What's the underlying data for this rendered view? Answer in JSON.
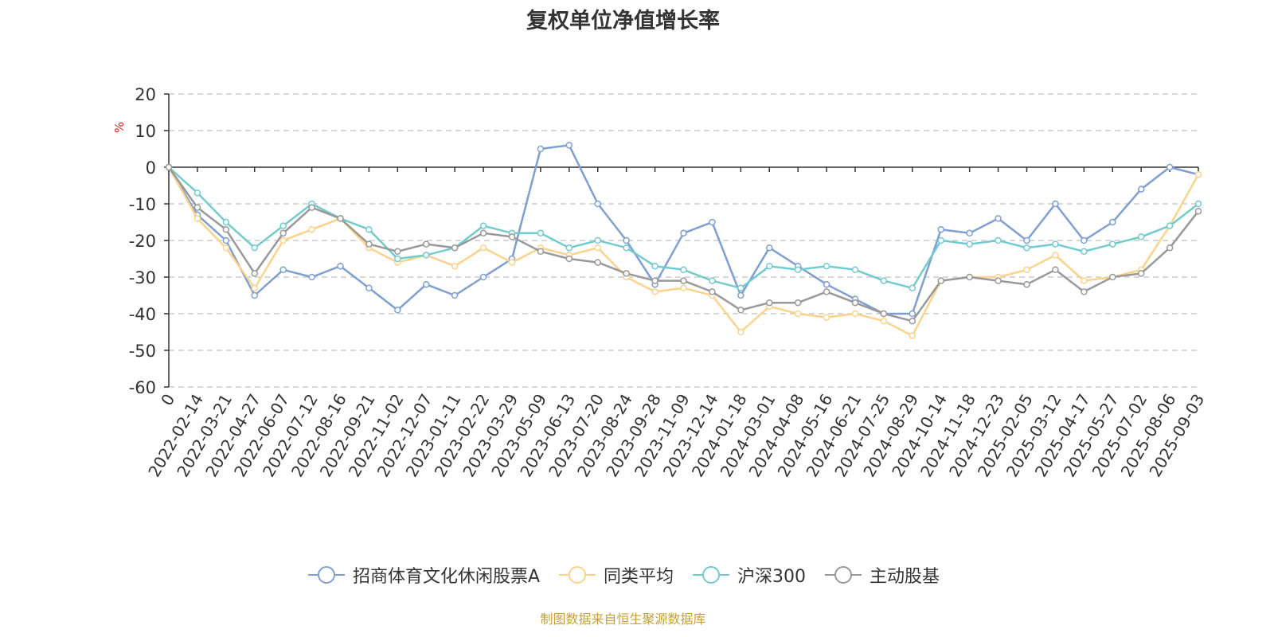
{
  "chart_data": {
    "type": "line",
    "title": "复权单位净值增长率",
    "ylabel": "%",
    "ylim": [
      -60,
      20
    ],
    "yticks": [
      20,
      10,
      0,
      -10,
      -20,
      -30,
      -40,
      -50,
      -60
    ],
    "grid": true,
    "legend_position": "bottom",
    "x": [
      "0",
      "2022-02-14",
      "2022-03-21",
      "2022-04-27",
      "2022-06-07",
      "2022-07-12",
      "2022-08-16",
      "2022-09-21",
      "2022-11-02",
      "2022-12-07",
      "2023-01-11",
      "2023-02-22",
      "2023-03-29",
      "2023-05-09",
      "2023-06-13",
      "2023-07-20",
      "2023-08-24",
      "2023-09-28",
      "2023-11-09",
      "2023-12-14",
      "2024-01-18",
      "2024-03-01",
      "2024-04-08",
      "2024-05-16",
      "2024-06-21",
      "2024-07-25",
      "2024-08-29",
      "2024-10-14",
      "2024-11-18",
      "2024-12-23",
      "2025-02-05",
      "2025-03-12",
      "2025-04-17",
      "2025-05-27",
      "2025-07-02",
      "2025-08-06",
      "2025-09-03"
    ],
    "series": [
      {
        "name": "招商体育文化休闲股票A",
        "color": "#7f9fd3",
        "values": [
          0,
          -13,
          -20,
          -35,
          -28,
          -30,
          -27,
          -33,
          -39,
          -32,
          -35,
          -30,
          -25,
          5,
          6,
          -10,
          -20,
          -32,
          -18,
          -15,
          -35,
          -22,
          -27,
          -32,
          -36,
          -40,
          -40,
          -17,
          -18,
          -14,
          -20,
          -10,
          -20,
          -15,
          -6,
          0,
          -2
        ]
      },
      {
        "name": "同类平均",
        "color": "#fdd28a",
        "values": [
          0,
          -14,
          -22,
          -33,
          -20,
          -17,
          -14,
          -22,
          -26,
          -24,
          -27,
          -22,
          -26,
          -22,
          -24,
          -22,
          -30,
          -34,
          -33,
          -35,
          -45,
          -38,
          -40,
          -41,
          -40,
          -42,
          -46,
          -31,
          -30,
          -30,
          -28,
          -24,
          -31,
          -30,
          -28,
          -16,
          -2
        ]
      },
      {
        "name": "沪深300",
        "color": "#72cbce",
        "values": [
          0,
          -7,
          -15,
          -22,
          -16,
          -10,
          -14,
          -17,
          -25,
          -24,
          -22,
          -16,
          -18,
          -18,
          -22,
          -20,
          -22,
          -27,
          -28,
          -31,
          -33,
          -27,
          -28,
          -27,
          -28,
          -31,
          -33,
          -20,
          -21,
          -20,
          -22,
          -21,
          -23,
          -21,
          -19,
          -16,
          -10
        ]
      },
      {
        "name": "主动股基",
        "color": "#999999",
        "values": [
          0,
          -11,
          -17,
          -29,
          -18,
          -11,
          -14,
          -21,
          -23,
          -21,
          -22,
          -18,
          -19,
          -23,
          -25,
          -26,
          -29,
          -31,
          -31,
          -34,
          -39,
          -37,
          -37,
          -34,
          -37,
          -40,
          -42,
          -31,
          -30,
          -31,
          -32,
          -28,
          -34,
          -30,
          -29,
          -22,
          -12
        ]
      }
    ]
  },
  "source_text": "制图数据来自恒生聚源数据库"
}
